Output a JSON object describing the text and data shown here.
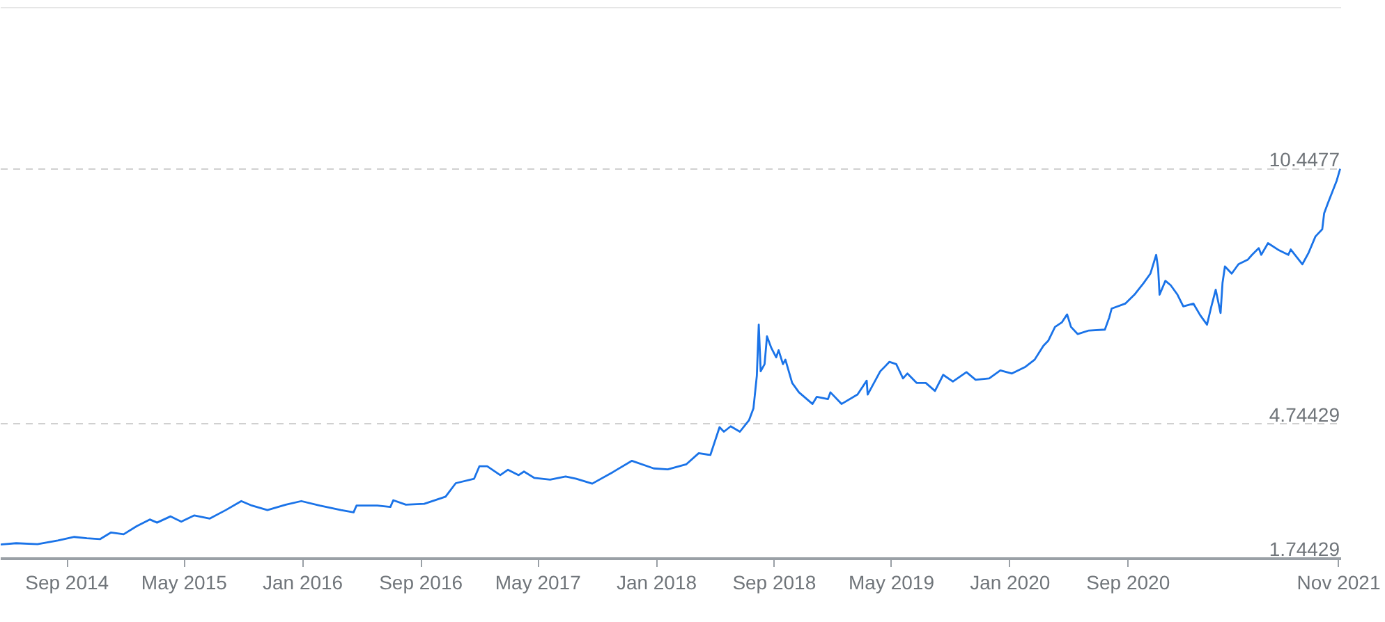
{
  "chart_data": {
    "type": "line",
    "color": "#1a73e8",
    "x": [
      "2014-04-17",
      "2014-05-19",
      "2014-07-02",
      "2014-08-13",
      "2014-09-16",
      "2014-10-12",
      "2014-11-08",
      "2014-12-01",
      "2014-12-27",
      "2015-01-23",
      "2015-02-19",
      "2015-03-06",
      "2015-04-03",
      "2015-04-25",
      "2015-05-22",
      "2015-06-23",
      "2015-07-26",
      "2015-08-27",
      "2015-09-18",
      "2015-10-20",
      "2015-11-27",
      "2015-12-29",
      "2016-02-05",
      "2016-03-20",
      "2016-04-15",
      "2016-04-21",
      "2016-06-03",
      "2016-06-30",
      "2016-07-06",
      "2016-08-01",
      "2016-09-08",
      "2016-10-22",
      "2016-11-12",
      "2016-12-20",
      "2016-12-31",
      "2017-01-16",
      "2017-02-12",
      "2017-02-28",
      "2017-03-22",
      "2017-04-02",
      "2017-04-23",
      "2017-05-26",
      "2017-06-27",
      "2017-07-19",
      "2017-08-21",
      "2017-10-03",
      "2017-11-11",
      "2017-12-26",
      "2018-01-24",
      "2018-03-03",
      "2018-03-29",
      "2018-04-22",
      "2018-05-11",
      "2018-05-20",
      "2018-06-03",
      "2018-06-22",
      "2018-07-11",
      "2018-07-20",
      "2018-07-27",
      "2018-07-31",
      "2018-08-04",
      "2018-08-12",
      "2018-08-17",
      "2018-08-26",
      "2018-09-05",
      "2018-09-10",
      "2018-09-19",
      "2018-09-24",
      "2018-10-08",
      "2018-10-22",
      "2018-11-19",
      "2018-11-28",
      "2018-12-21",
      "2018-12-26",
      "2019-01-18",
      "2019-02-20",
      "2019-03-11",
      "2019-03-13",
      "2019-04-08",
      "2019-04-27",
      "2019-05-11",
      "2019-05-25",
      "2019-06-03",
      "2019-06-22",
      "2019-07-11",
      "2019-07-30",
      "2019-08-16",
      "2019-09-05",
      "2019-10-03",
      "2019-10-22",
      "2019-11-19",
      "2019-12-12",
      "2020-01-05",
      "2020-02-02",
      "2020-02-21",
      "2020-03-10",
      "2020-03-20",
      "2020-04-03",
      "2020-04-17",
      "2020-04-28",
      "2020-05-06",
      "2020-05-20",
      "2020-06-12",
      "2020-07-15",
      "2020-07-24",
      "2020-07-29",
      "2020-08-26",
      "2020-09-14",
      "2020-10-03",
      "2020-10-17",
      "2020-10-29",
      "2020-11-02",
      "2020-11-05",
      "2020-11-17",
      "2020-11-28",
      "2020-12-12",
      "2020-12-24",
      "2021-01-14",
      "2021-01-28",
      "2021-02-11",
      "2021-02-20",
      "2021-03-01",
      "2021-03-06",
      "2021-03-11",
      "2021-03-15",
      "2021-03-20",
      "2021-04-03",
      "2021-04-17",
      "2021-05-06",
      "2021-05-15",
      "2021-05-29",
      "2021-06-03",
      "2021-06-17",
      "2021-07-10",
      "2021-07-29",
      "2021-08-03",
      "2021-08-27",
      "2021-09-09",
      "2021-09-23",
      "2021-10-07",
      "2021-10-11",
      "2021-10-19",
      "2021-10-28",
      "2021-11-06",
      "2021-11-13"
    ],
    "values": [
      2.06,
      2.09,
      2.07,
      2.15,
      2.23,
      2.2,
      2.18,
      2.33,
      2.29,
      2.47,
      2.62,
      2.55,
      2.69,
      2.57,
      2.71,
      2.64,
      2.83,
      3.03,
      2.93,
      2.83,
      2.95,
      3.03,
      2.93,
      2.83,
      2.78,
      2.93,
      2.93,
      2.9,
      3.05,
      2.95,
      2.97,
      3.13,
      3.43,
      3.53,
      3.81,
      3.81,
      3.61,
      3.73,
      3.61,
      3.69,
      3.55,
      3.51,
      3.58,
      3.53,
      3.42,
      3.68,
      3.93,
      3.76,
      3.74,
      3.85,
      4.1,
      4.06,
      4.68,
      4.58,
      4.7,
      4.58,
      4.84,
      5.1,
      5.83,
      6.97,
      5.93,
      6.09,
      6.71,
      6.45,
      6.24,
      6.4,
      6.09,
      6.19,
      5.67,
      5.46,
      5.2,
      5.36,
      5.31,
      5.46,
      5.2,
      5.41,
      5.72,
      5.41,
      5.93,
      6.14,
      6.09,
      5.77,
      5.88,
      5.67,
      5.67,
      5.49,
      5.85,
      5.7,
      5.91,
      5.74,
      5.77,
      5.95,
      5.88,
      6.03,
      6.19,
      6.5,
      6.61,
      6.92,
      7.02,
      7.2,
      6.92,
      6.76,
      6.84,
      6.86,
      7.13,
      7.33,
      7.44,
      7.64,
      7.9,
      8.11,
      8.53,
      8.22,
      7.64,
      7.95,
      7.85,
      7.64,
      7.38,
      7.44,
      7.18,
      6.97,
      7.38,
      7.75,
      7.49,
      7.23,
      7.9,
      8.27,
      8.11,
      8.32,
      8.42,
      8.53,
      8.68,
      8.53,
      8.79,
      8.63,
      8.53,
      8.65,
      8.32,
      8.58,
      8.94,
      9.1,
      9.46,
      9.69,
      9.94,
      10.19,
      10.45
    ],
    "xlim": [
      "2014-04-17",
      "2021-11-15"
    ],
    "xticks": [
      {
        "value": "2014-09-01",
        "label": "Sep 2014"
      },
      {
        "value": "2015-05-01",
        "label": "May 2015"
      },
      {
        "value": "2016-01-01",
        "label": "Jan 2016"
      },
      {
        "value": "2016-09-01",
        "label": "Sep 2016"
      },
      {
        "value": "2017-05-01",
        "label": "May 2017"
      },
      {
        "value": "2018-01-01",
        "label": "Jan 2018"
      },
      {
        "value": "2018-09-01",
        "label": "Sep 2018"
      },
      {
        "value": "2019-05-01",
        "label": "May 2019"
      },
      {
        "value": "2020-01-01",
        "label": "Jan 2020"
      },
      {
        "value": "2020-09-01",
        "label": "Sep 2020"
      },
      {
        "value": "2021-11-10",
        "label": "Nov 2021"
      }
    ],
    "ylim": [
      1.74429,
      14.05
    ],
    "yticks": [
      1.74429,
      4.74429,
      10.4477
    ],
    "grid": "y"
  }
}
